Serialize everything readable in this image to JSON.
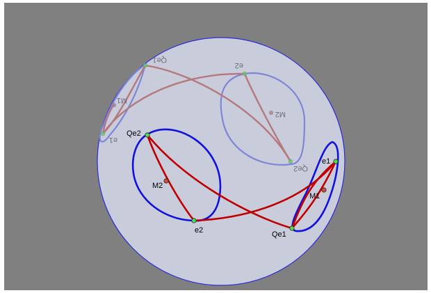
{
  "colors": {
    "background": "#808080",
    "disk_fill": "#c9ccdb",
    "disk_stroke": "#2b2bd9",
    "front_loop": "#1010e0",
    "front_path": "#c00000",
    "back_loop": "#7f86d6",
    "back_path": "#b5787c",
    "point_green": "#52d852",
    "point_red": "#d24a3a"
  },
  "front": {
    "e1": "e1",
    "e2": "e2",
    "qe1": "Qe1",
    "qe2": "Qe2",
    "m1": "M1",
    "m2": "M2"
  },
  "back": {
    "e1": "e1",
    "e2": "e2",
    "qe1": "Qe1",
    "qe2": "Qe2",
    "m1": "M1",
    "m2": "M2"
  }
}
